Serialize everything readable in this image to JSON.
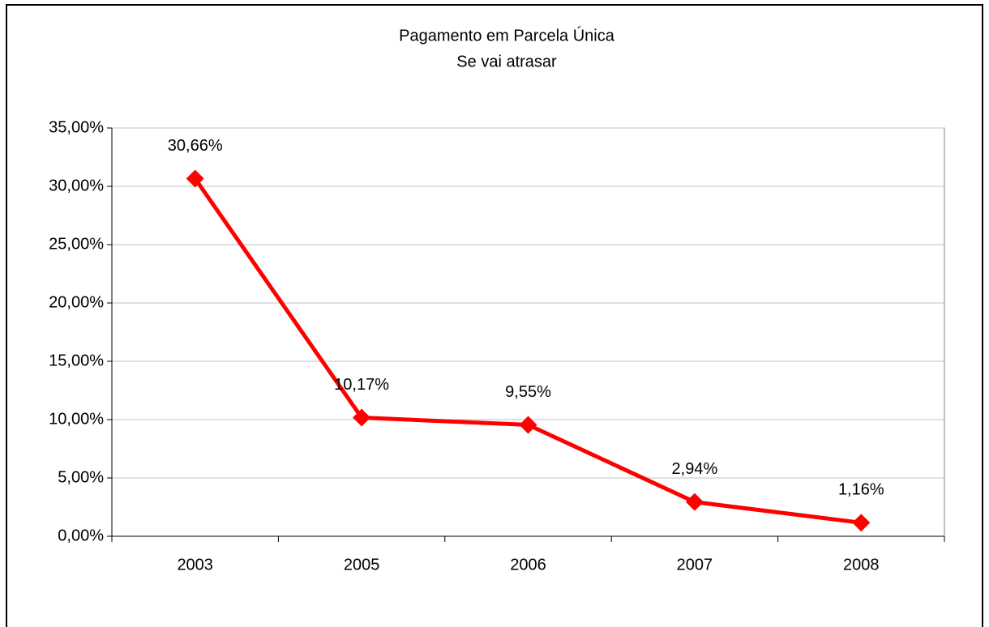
{
  "chart_data": {
    "type": "line",
    "title": "Pagamento em Parcela Única",
    "subtitle": "Se vai atrasar",
    "categories": [
      "2003",
      "2005",
      "2006",
      "2007",
      "2008"
    ],
    "series": [
      {
        "name": "Se vai atrasar",
        "color": "#ff0000",
        "values": [
          30.66,
          10.17,
          9.55,
          2.94,
          1.16
        ],
        "value_labels": [
          "30,66%",
          "10,17%",
          "9,55%",
          "2,94%",
          "1,16%"
        ]
      }
    ],
    "ylim": [
      0,
      35
    ],
    "yticks": [
      {
        "value": 0,
        "label": "0,00%"
      },
      {
        "value": 5,
        "label": "5,00%"
      },
      {
        "value": 10,
        "label": "10,00%"
      },
      {
        "value": 15,
        "label": "15,00%"
      },
      {
        "value": 20,
        "label": "20,00%"
      },
      {
        "value": 25,
        "label": "25,00%"
      },
      {
        "value": 30,
        "label": "30,00%"
      },
      {
        "value": 35,
        "label": "35,00%"
      }
    ],
    "grid": true
  }
}
